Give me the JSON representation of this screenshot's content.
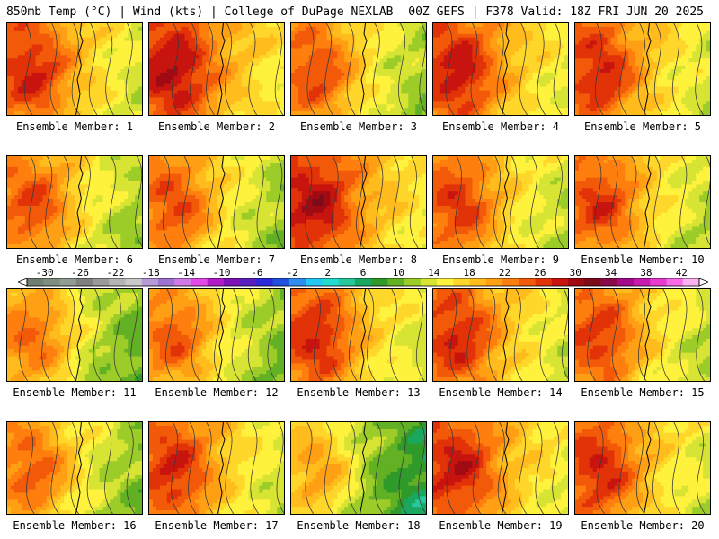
{
  "header": {
    "left_title": "850mb Temp (°C) | Wind (kts) | College of DuPage NEXLAB",
    "right_title": "00Z GEFS | F378 Valid: 18Z FRI JUN 20 2025"
  },
  "chart_data": {
    "type": "heatmap",
    "title": "850mb Temp (°C) | Wind (kts)",
    "colorbar": {
      "tick_labels": [
        "-30",
        "-26",
        "-22",
        "-18",
        "-14",
        "-10",
        "-6",
        "-2",
        "2",
        "6",
        "10",
        "14",
        "18",
        "22",
        "26",
        "30",
        "34",
        "38",
        "42"
      ],
      "min": -32,
      "max": 44,
      "step": 2,
      "colors": [
        "#6e7f72",
        "#7f8c80",
        "#909d92",
        "#808080",
        "#9a9a9a",
        "#b4b4b4",
        "#c9c9c9",
        "#b89ad6",
        "#9c73d0",
        "#d27be8",
        "#e249e8",
        "#b21cc8",
        "#7d12b8",
        "#5a1fc2",
        "#2a2ad8",
        "#1f50e0",
        "#2d8ef0",
        "#24c8f0",
        "#22dcd0",
        "#27c89c",
        "#1aa860",
        "#2f9a2a",
        "#62b024",
        "#9ccc28",
        "#d8e434",
        "#fff23c",
        "#ffd72a",
        "#ffbc1c",
        "#ffa014",
        "#ff7f0e",
        "#f25a0a",
        "#e23208",
        "#c8140e",
        "#a00a12",
        "#7d0a18",
        "#8a0a4a",
        "#a50a8a",
        "#c81ab0",
        "#ea3ad0",
        "#f86ae6",
        "#fbb2f0"
      ]
    },
    "members": [
      {
        "label": "Ensemble Member: 1",
        "base": 27
      },
      {
        "label": "Ensemble Member: 2",
        "base": 29
      },
      {
        "label": "Ensemble Member: 3",
        "base": 25
      },
      {
        "label": "Ensemble Member: 4",
        "base": 28
      },
      {
        "label": "Ensemble Member: 5",
        "base": 27
      },
      {
        "label": "Ensemble Member: 6",
        "base": 25
      },
      {
        "label": "Ensemble Member: 7",
        "base": 25
      },
      {
        "label": "Ensemble Member: 8",
        "base": 29
      },
      {
        "label": "Ensemble Member: 9",
        "base": 26
      },
      {
        "label": "Ensemble Member: 10",
        "base": 26
      },
      {
        "label": "Ensemble Member: 11",
        "base": 23
      },
      {
        "label": "Ensemble Member: 12",
        "base": 24
      },
      {
        "label": "Ensemble Member: 13",
        "base": 27
      },
      {
        "label": "Ensemble Member: 14",
        "base": 27
      },
      {
        "label": "Ensemble Member: 15",
        "base": 26
      },
      {
        "label": "Ensemble Member: 16",
        "base": 24
      },
      {
        "label": "Ensemble Member: 17",
        "base": 27
      },
      {
        "label": "Ensemble Member: 18",
        "base": 20
      },
      {
        "label": "Ensemble Member: 19",
        "base": 28
      },
      {
        "label": "Ensemble Member: 20",
        "base": 27
      }
    ]
  }
}
